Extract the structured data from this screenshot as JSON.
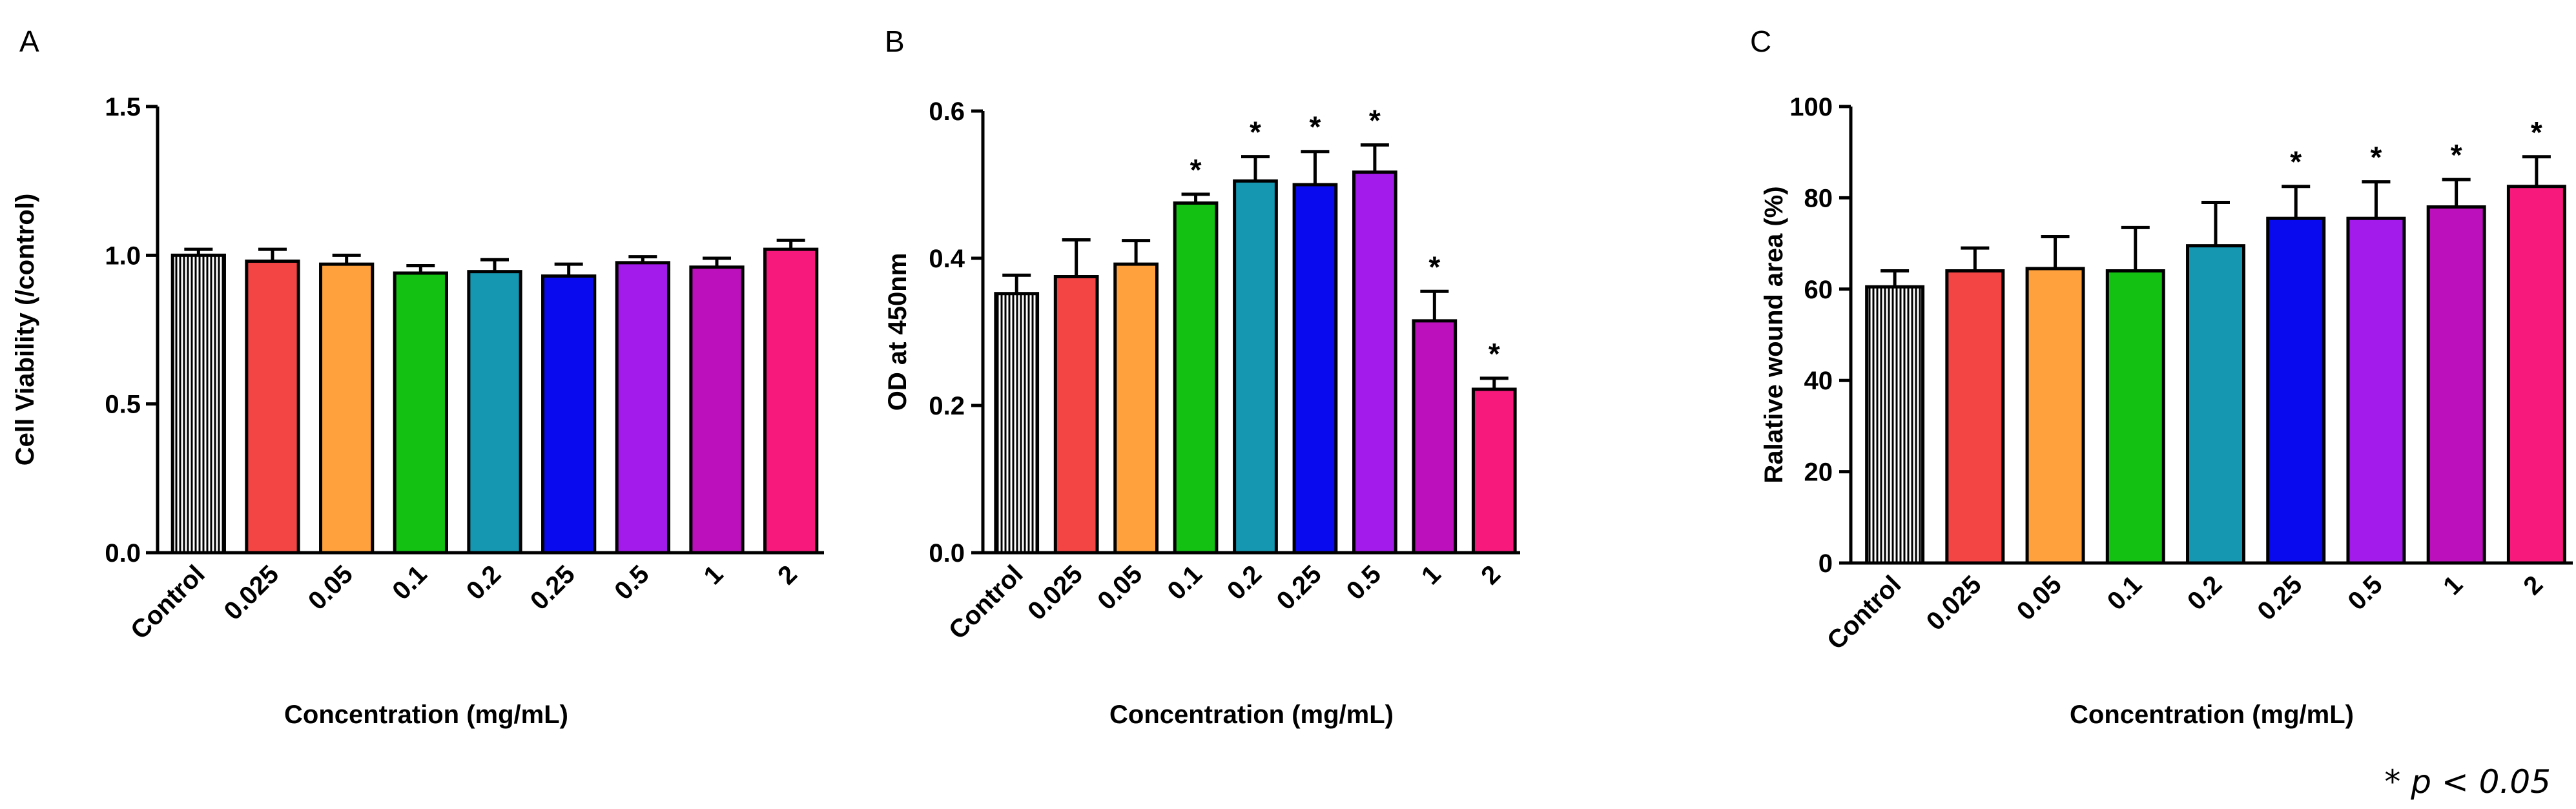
{
  "colors": {
    "control": "#ffffff",
    "c0025": "#f44545",
    "c005": "#ffa23e",
    "c01": "#12c111",
    "c02": "#1597b2",
    "c025": "#0a0aef",
    "c05": "#a31bea",
    "c1": "#bc10bc",
    "c2": "#f7197c"
  },
  "footnote": "* p < 0.05",
  "chart_data": [
    {
      "type": "bar",
      "panel": "A",
      "title": "",
      "xlabel": "Concentration (mg/mL)",
      "ylabel": "Cell Viability (/control)",
      "categories": [
        "Control",
        "0.025",
        "0.05",
        "0.1",
        "0.2",
        "0.25",
        "0.5",
        "1",
        "2"
      ],
      "values": [
        1.0,
        0.98,
        0.97,
        0.94,
        0.945,
        0.93,
        0.975,
        0.96,
        1.02
      ],
      "errors": [
        0.02,
        0.04,
        0.03,
        0.025,
        0.04,
        0.04,
        0.02,
        0.03,
        0.03
      ],
      "significant": [
        false,
        false,
        false,
        false,
        false,
        false,
        false,
        false,
        false
      ],
      "ylim": [
        0,
        1.5
      ],
      "yticks": [
        "0.0",
        "0.5",
        "1.0",
        "1.5"
      ],
      "ytick_values": [
        0,
        0.5,
        1.0,
        1.5
      ]
    },
    {
      "type": "bar",
      "panel": "B",
      "title": "",
      "xlabel": "Concentration (mg/mL)",
      "ylabel": "OD at 450nm",
      "categories": [
        "Control",
        "0.025",
        "0.05",
        "0.1",
        "0.2",
        "0.25",
        "0.5",
        "1",
        "2"
      ],
      "values": [
        0.352,
        0.375,
        0.392,
        0.475,
        0.505,
        0.5,
        0.517,
        0.315,
        0.222
      ],
      "errors": [
        0.025,
        0.05,
        0.032,
        0.012,
        0.033,
        0.045,
        0.037,
        0.04,
        0.015
      ],
      "significant": [
        false,
        false,
        false,
        true,
        true,
        true,
        true,
        true,
        true
      ],
      "ylim": [
        0,
        0.6
      ],
      "yticks": [
        "0.0",
        "0.2",
        "0.4",
        "0.6"
      ],
      "ytick_values": [
        0,
        0.2,
        0.4,
        0.6
      ]
    },
    {
      "type": "bar",
      "panel": "C",
      "title": "",
      "xlabel": "Concentration (mg/mL)",
      "ylabel": "Ralative wound area (%)",
      "categories": [
        "Control",
        "0.025",
        "0.05",
        "0.1",
        "0.2",
        "0.25",
        "0.5",
        "1",
        "2"
      ],
      "values": [
        60.5,
        64,
        64.5,
        64,
        69.5,
        75.5,
        75.5,
        78,
        82.5
      ],
      "errors": [
        3.5,
        5,
        7,
        9.5,
        9.5,
        7,
        8,
        6,
        6.5
      ],
      "significant": [
        false,
        false,
        false,
        false,
        false,
        true,
        true,
        true,
        true
      ],
      "ylim": [
        0,
        100
      ],
      "yticks": [
        "0",
        "20",
        "40",
        "60",
        "80",
        "100"
      ],
      "ytick_values": [
        0,
        20,
        40,
        60,
        80,
        100
      ]
    }
  ]
}
